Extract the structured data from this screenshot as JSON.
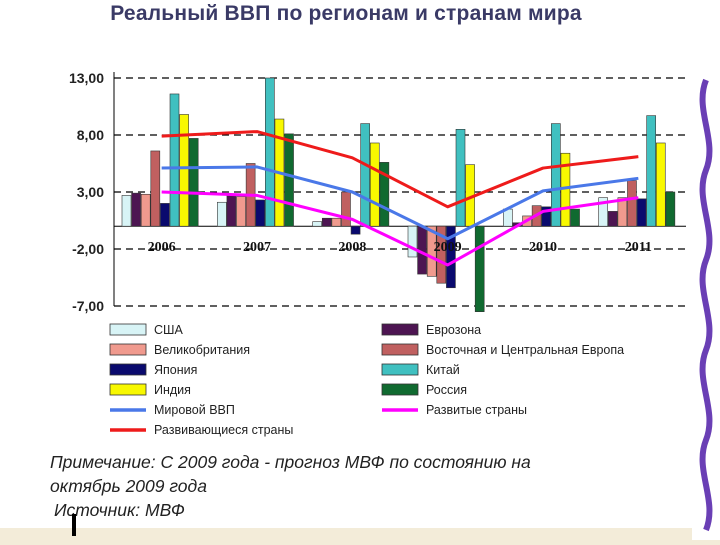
{
  "title": "Реальный ВВП по регионам и странам мира",
  "note_lines": [
    "Примечание: С 2009 года - прогноз МВФ по состоянию на",
    "октябрь 2009 года",
    "Источник: МВФ"
  ],
  "colors": {
    "accent_wave": "#6a3fb5",
    "grid": "#000000"
  },
  "chart_data": {
    "type": "bar",
    "title": "Реальный ВВП по регионам и странам мира",
    "categories": [
      "2006",
      "2007",
      "2008",
      "2009",
      "2010",
      "2011"
    ],
    "ylim": [
      -7,
      13
    ],
    "y_ticks": [
      13,
      8,
      3,
      -2,
      -7
    ],
    "y_tick_labels": [
      "13,00",
      "8,00",
      "3,00",
      "-2,00",
      "-7,00"
    ],
    "grid": "dashed horizontal",
    "legend_position": "bottom",
    "bar_series": [
      {
        "name": "США",
        "color": "#d8f4f6",
        "values": [
          2.7,
          2.1,
          0.4,
          -2.7,
          1.5,
          2.5
        ]
      },
      {
        "name": "Еврозона",
        "color": "#4d1552",
        "values": [
          2.9,
          2.7,
          0.7,
          -4.2,
          0.3,
          1.3
        ]
      },
      {
        "name": "Великобритания",
        "color": "#f09a8e",
        "values": [
          2.8,
          2.6,
          0.7,
          -4.4,
          0.9,
          2.5
        ]
      },
      {
        "name": "Восточная и Центральная Европа",
        "color": "#c06060",
        "values": [
          6.6,
          5.5,
          3.0,
          -5.0,
          1.8,
          4.0
        ]
      },
      {
        "name": "Япония",
        "color": "#0a0a6e",
        "values": [
          2.0,
          2.3,
          -0.7,
          -5.4,
          1.7,
          2.4
        ]
      },
      {
        "name": "Китай",
        "color": "#40c0c0",
        "values": [
          11.6,
          13.0,
          9.0,
          8.5,
          9.0,
          9.7
        ]
      },
      {
        "name": "Индия",
        "color": "#f8f800",
        "values": [
          9.8,
          9.4,
          7.3,
          5.4,
          6.4,
          7.3
        ]
      },
      {
        "name": "Россия",
        "color": "#106a30",
        "values": [
          7.7,
          8.1,
          5.6,
          -7.5,
          1.5,
          3.0
        ]
      }
    ],
    "line_series": [
      {
        "name": "Мировой ВВП",
        "color": "#4a78e8",
        "values": [
          5.1,
          5.2,
          3.0,
          -1.1,
          3.1,
          4.2
        ]
      },
      {
        "name": "Развитые страны",
        "color": "#ff00ff",
        "values": [
          3.0,
          2.7,
          0.6,
          -3.4,
          1.3,
          2.5
        ]
      },
      {
        "name": "Развивающиеся страны",
        "color": "#ee1b1b",
        "values": [
          7.9,
          8.3,
          6.0,
          1.7,
          5.1,
          6.1
        ]
      }
    ],
    "legend": [
      {
        "label": "США",
        "kind": "bar",
        "color": "#d8f4f6"
      },
      {
        "label": "Еврозона",
        "kind": "bar",
        "color": "#4d1552"
      },
      {
        "label": "Великобритания",
        "kind": "bar",
        "color": "#f09a8e"
      },
      {
        "label": "Восточная и Центральная Европа",
        "kind": "bar",
        "color": "#c06060"
      },
      {
        "label": "Япония",
        "kind": "bar",
        "color": "#0a0a6e"
      },
      {
        "label": "Китай",
        "kind": "bar",
        "color": "#40c0c0"
      },
      {
        "label": "Индия",
        "kind": "bar",
        "color": "#f8f800"
      },
      {
        "label": "Россия",
        "kind": "bar",
        "color": "#106a30"
      },
      {
        "label": "Мировой ВВП",
        "kind": "line",
        "color": "#4a78e8"
      },
      {
        "label": "Развитые страны",
        "kind": "line",
        "color": "#ff00ff"
      },
      {
        "label": "Развивающиеся страны",
        "kind": "line",
        "color": "#ee1b1b"
      }
    ]
  }
}
